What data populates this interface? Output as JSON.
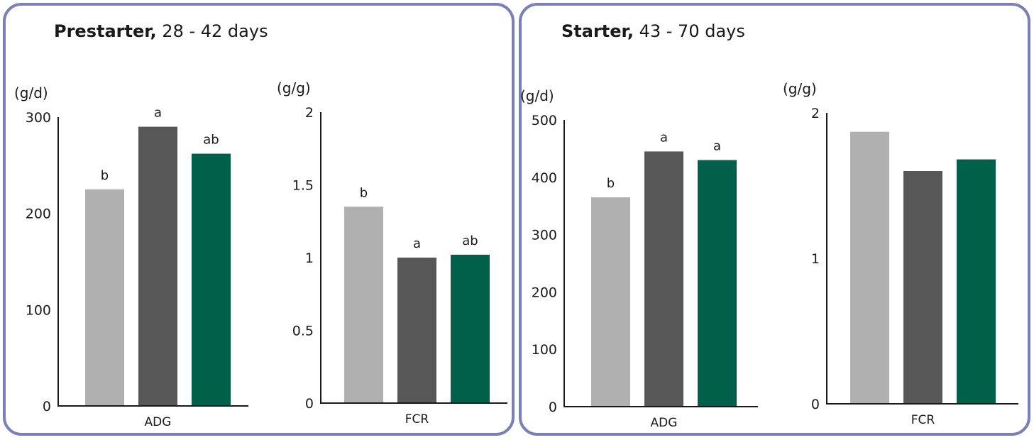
{
  "colors": {
    "frame": "#7a7fb8",
    "axis": "#1a1a1a"
  },
  "panels": [
    {
      "title_bold": "Prestarter,",
      "title_rest": " 28 - 42 days"
    },
    {
      "title_bold": "Starter,",
      "title_rest": " 43 - 70 days"
    }
  ],
  "chart_data": [
    {
      "type": "bar",
      "panel": 0,
      "unit": "(g/d)",
      "xlabel": "ADG",
      "ylim": [
        0,
        300
      ],
      "yticks": [
        0,
        100,
        200,
        300
      ],
      "values": [
        225,
        290,
        262
      ],
      "bar_colors": [
        "#b0b0b0",
        "#575757",
        "#00604a"
      ],
      "labels": [
        "b",
        "a",
        "ab"
      ]
    },
    {
      "type": "bar",
      "panel": 0,
      "unit": "(g/g)",
      "xlabel": "FCR",
      "ylim": [
        0,
        2
      ],
      "yticks": [
        0,
        0.5,
        1,
        1.5,
        2
      ],
      "values": [
        1.35,
        1.0,
        1.02
      ],
      "bar_colors": [
        "#b0b0b0",
        "#575757",
        "#00604a"
      ],
      "labels": [
        "b",
        "a",
        "ab"
      ]
    },
    {
      "type": "bar",
      "panel": 1,
      "unit": "(g/d)",
      "xlabel": "ADG",
      "ylim": [
        0,
        500
      ],
      "yticks": [
        0,
        100,
        200,
        300,
        400,
        500
      ],
      "values": [
        365,
        445,
        430
      ],
      "bar_colors": [
        "#b0b0b0",
        "#575757",
        "#00604a"
      ],
      "labels": [
        "b",
        "a",
        "a"
      ]
    },
    {
      "type": "bar",
      "panel": 1,
      "unit": "(g/g)",
      "xlabel": "FCR",
      "ylim": [
        0,
        2
      ],
      "yticks": [
        0,
        1,
        2
      ],
      "values": [
        1.87,
        1.6,
        1.68
      ],
      "bar_colors": [
        "#b0b0b0",
        "#575757",
        "#00604a"
      ],
      "labels": [
        "",
        "",
        ""
      ]
    }
  ]
}
